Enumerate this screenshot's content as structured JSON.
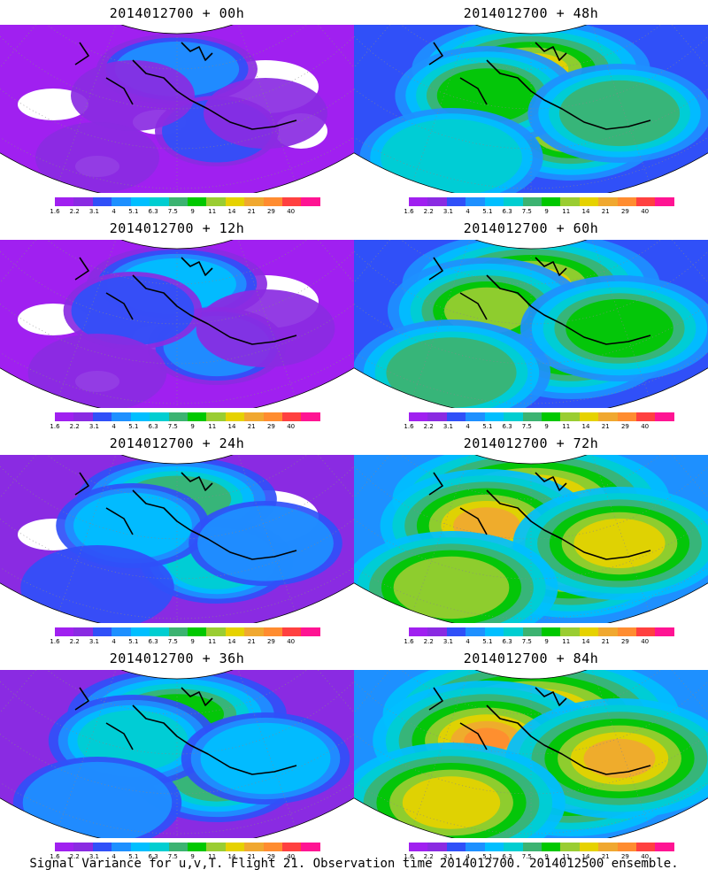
{
  "colorbar": {
    "labels": [
      "1.6",
      "2.2",
      "3.1",
      "4",
      "5.1",
      "6.3",
      "7.5",
      "9",
      "11",
      "14",
      "21",
      "29",
      "40"
    ],
    "colors": [
      "#a020f0",
      "#8a2be2",
      "#3050f8",
      "#1e90ff",
      "#00bfff",
      "#00ced1",
      "#3cb371",
      "#00c800",
      "#9acd32",
      "#e6d200",
      "#f0a830",
      "#ff8c30",
      "#ff4040",
      "#ff1493"
    ]
  },
  "panels": [
    {
      "title": "2014012700 + 00h",
      "level": 0
    },
    {
      "title": "2014012700 + 48h",
      "level": 4
    },
    {
      "title": "2014012700 + 12h",
      "level": 1
    },
    {
      "title": "2014012700 + 60h",
      "level": 5
    },
    {
      "title": "2014012700 + 24h",
      "level": 2
    },
    {
      "title": "2014012700 + 72h",
      "level": 6
    },
    {
      "title": "2014012700 + 36h",
      "level": 3
    },
    {
      "title": "2014012700 + 84h",
      "level": 7
    }
  ],
  "caption": "Signal Variance for u,v,T. Flight 21. Observation time 2014012700. 2014012500 ensemble."
}
